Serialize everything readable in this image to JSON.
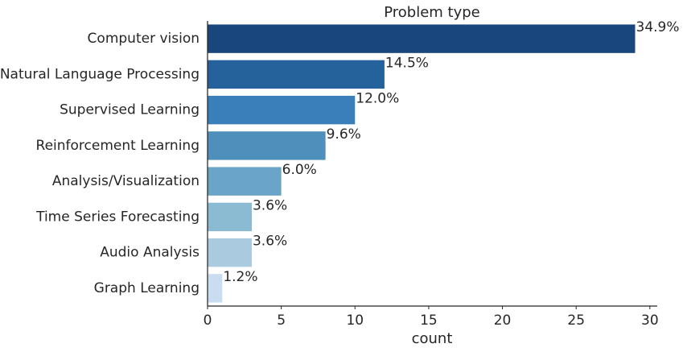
{
  "chart_data": {
    "type": "bar",
    "orientation": "horizontal",
    "title": "Problem type",
    "xlabel": "count",
    "ylabel": "",
    "xlim": [
      0,
      30.5
    ],
    "xticks": [
      0,
      5,
      10,
      15,
      20,
      25,
      30
    ],
    "grid": false,
    "categories": [
      "Computer vision",
      "Natural Language Processing",
      "Supervised Learning",
      "Reinforcement Learning",
      "Analysis/Visualization",
      "Time Series Forecasting",
      "Audio Analysis",
      "Graph Learning"
    ],
    "values": [
      29,
      12,
      10,
      8,
      5,
      3,
      3,
      1
    ],
    "data_labels": [
      "34.9%",
      "14.5%",
      "12.0%",
      "9.6%",
      "6.0%",
      "3.6%",
      "3.6%",
      "1.2%"
    ],
    "colors": [
      "#19467c",
      "#25619b",
      "#3a7fb9",
      "#4f8fbb",
      "#6aa4c8",
      "#8bbad3",
      "#aacbdf",
      "#c9dcf0"
    ]
  }
}
